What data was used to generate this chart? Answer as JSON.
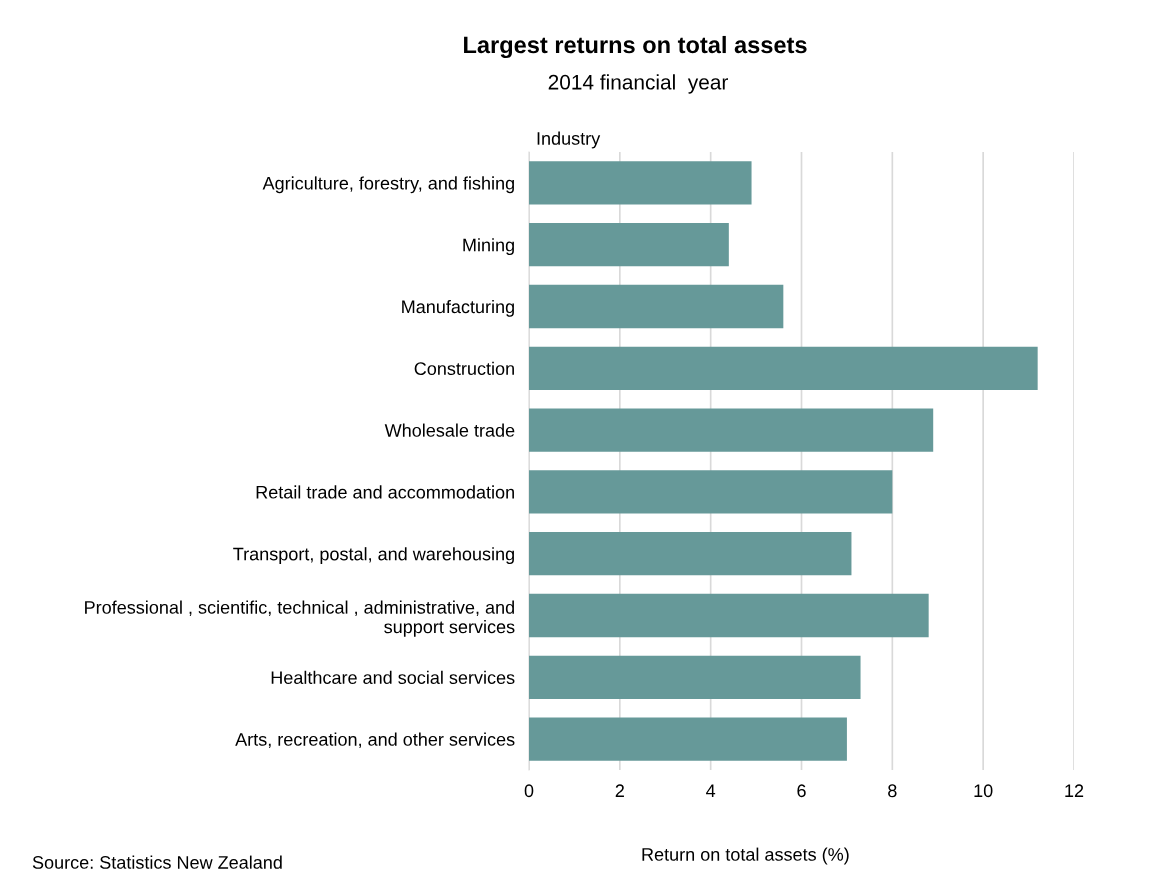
{
  "chart_data": {
    "type": "bar",
    "orientation": "horizontal",
    "title": "Largest returns on total assets",
    "subtitle": "2014 financial  year",
    "ylabel": "Industry",
    "xlabel": "Return on total assets (%)",
    "annotations": [
      "Source: Statistics New Zealand"
    ],
    "categories": [
      "Agriculture, forestry, and fishing",
      "Mining",
      "Manufacturing",
      "Construction",
      "Wholesale trade",
      "Retail trade and accommodation",
      "Transport, postal, and warehousing",
      "Professional , scientific, technical , administrative, and\nsupport services",
      "Healthcare and social services",
      "Arts, recreation, and other services"
    ],
    "values": [
      4.9,
      4.4,
      5.6,
      11.2,
      8.9,
      8.0,
      7.1,
      8.8,
      7.3,
      7.0
    ],
    "color": "#669999",
    "xlim": [
      0,
      12
    ],
    "xticks": [
      0,
      2,
      4,
      6,
      8,
      10,
      12
    ],
    "grid": "x"
  }
}
